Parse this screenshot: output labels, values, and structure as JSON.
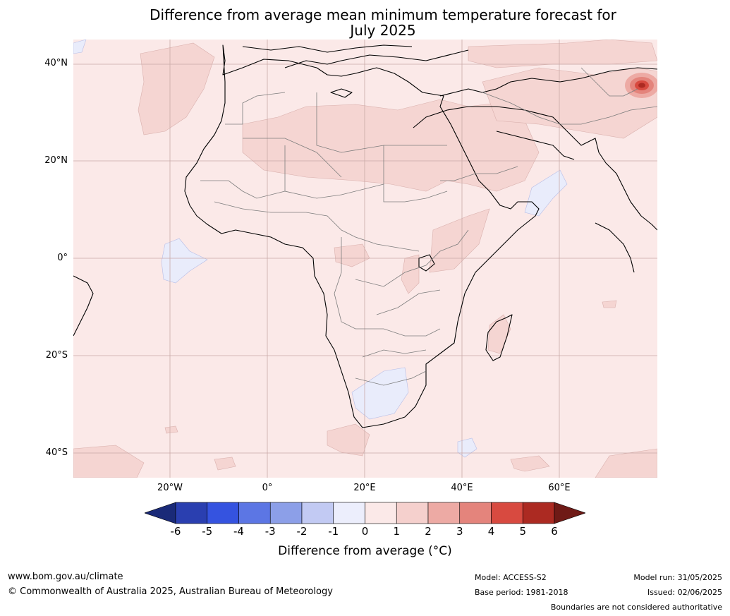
{
  "title_line1": "Difference from average mean minimum temperature forecast for",
  "title_line2": "July 2025",
  "lat_labels": [
    "40°N",
    "20°N",
    "0°",
    "20°S",
    "40°S"
  ],
  "lon_labels": [
    "20°W",
    "0°",
    "20°E",
    "40°E",
    "60°E"
  ],
  "colorbar": {
    "ticks": [
      "-6",
      "-5",
      "-4",
      "-3",
      "-2",
      "-1",
      "0",
      "1",
      "2",
      "3",
      "4",
      "5",
      "6"
    ],
    "colors": [
      "#1a2a78",
      "#2a3fb0",
      "#3553e0",
      "#5c76e4",
      "#8c9fe8",
      "#c2caf3",
      "#eceefc",
      "#fbe9e8",
      "#f5d0cd",
      "#edaaa4",
      "#e4847c",
      "#d84a40",
      "#ac2a22",
      "#6f1a16"
    ],
    "label": "Difference from average (°C)"
  },
  "footer": {
    "url": "www.bom.gov.au/climate",
    "copyright": "© Commonwealth of Australia 2025, Australian Bureau of Meteorology",
    "model": "Model: ACCESS-S2",
    "base_period": "Base period: 1981-2018",
    "model_run": "Model run: 31/05/2025",
    "issued": "Issued: 02/06/2025",
    "disclaimer": "Boundaries are not considered authoritative"
  }
}
